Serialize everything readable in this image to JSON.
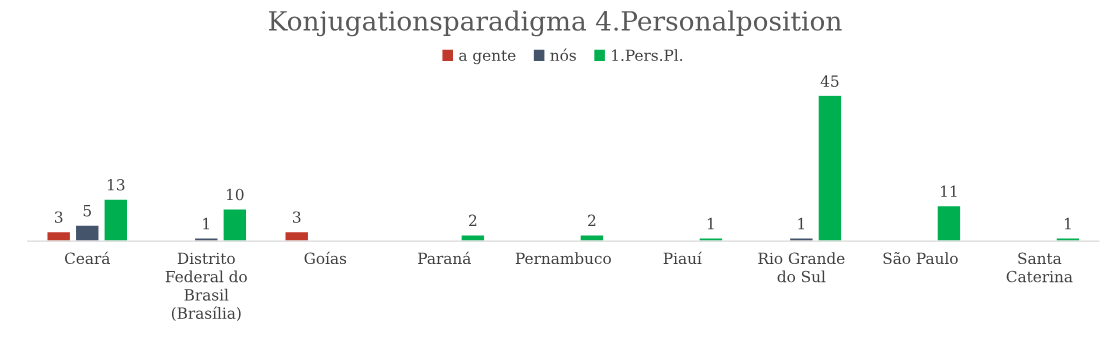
{
  "chart_data": {
    "type": "bar",
    "title": "Konjugationsparadigma 4.Personalposition",
    "categories": [
      "Ceará",
      "Distrito\nFederal do\nBrasil\n(Brasília)",
      "Goías",
      "Paraná",
      "Pernambuco",
      "Piauí",
      "Rio Grande\ndo Sul",
      "São Paulo",
      "Santa\nCaterina"
    ],
    "series": [
      {
        "name": "a gente",
        "color": "#c0392b",
        "values": [
          3,
          null,
          3,
          null,
          null,
          null,
          null,
          null,
          null
        ]
      },
      {
        "name": "nós",
        "color": "#44546a",
        "values": [
          5,
          1,
          null,
          null,
          null,
          null,
          1,
          null,
          null
        ]
      },
      {
        "name": "1.Pers.Pl.",
        "color": "#00b050",
        "values": [
          13,
          10,
          null,
          2,
          2,
          1,
          45,
          11,
          1
        ]
      }
    ],
    "data_labels": true,
    "legend": "top",
    "grid": false
  }
}
